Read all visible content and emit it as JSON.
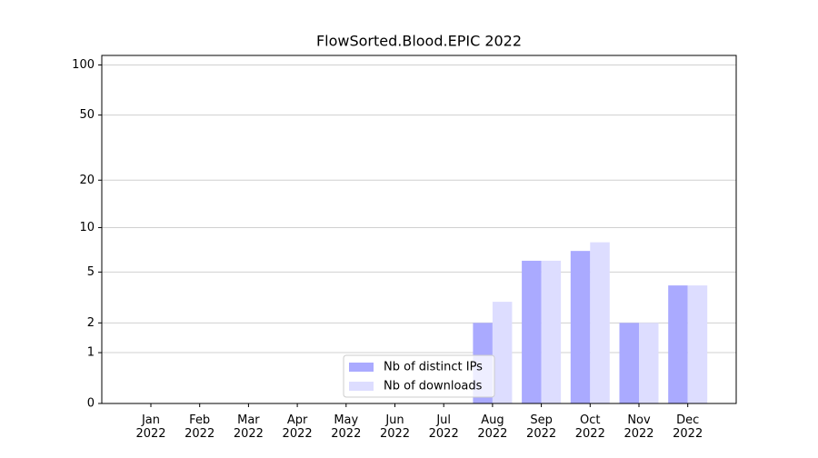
{
  "chart_data": {
    "type": "bar",
    "title": "FlowSorted.Blood.EPIC 2022",
    "categories": [
      "Jan\n2022",
      "Feb\n2022",
      "Mar\n2022",
      "Apr\n2022",
      "May\n2022",
      "Jun\n2022",
      "Jul\n2022",
      "Aug\n2022",
      "Sep\n2022",
      "Oct\n2022",
      "Nov\n2022",
      "Dec\n2022"
    ],
    "series": [
      {
        "name": "Nb of distinct IPs",
        "color": "#aaaaff",
        "values": [
          0,
          0,
          0,
          0,
          0,
          0,
          0,
          2,
          6,
          7,
          2,
          4
        ]
      },
      {
        "name": "Nb of downloads",
        "color": "#ddddff",
        "values": [
          0,
          0,
          0,
          0,
          0,
          0,
          0,
          3,
          6,
          8,
          2,
          4
        ]
      }
    ],
    "yscale": "log1p",
    "ylim": [
      0,
      114
    ],
    "yticks": [
      0,
      1,
      2,
      5,
      10,
      20,
      50,
      100
    ],
    "grid": true,
    "legend": "lower center"
  }
}
